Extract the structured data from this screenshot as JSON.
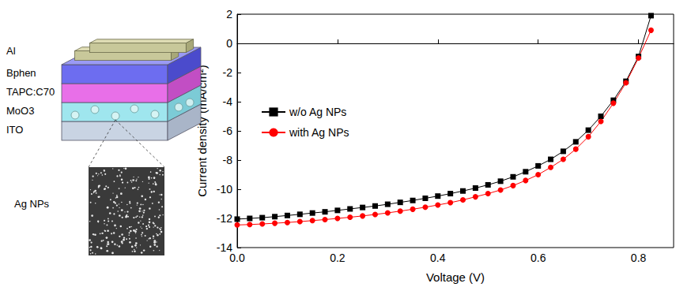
{
  "chart_data": {
    "type": "line",
    "x_label": "Voltage (V)",
    "y_label": "Current density (mA/cm²)",
    "x": [
      0,
      0.025,
      0.05,
      0.075,
      0.1,
      0.125,
      0.15,
      0.175,
      0.2,
      0.225,
      0.25,
      0.275,
      0.3,
      0.325,
      0.35,
      0.375,
      0.4,
      0.425,
      0.45,
      0.475,
      0.5,
      0.525,
      0.55,
      0.575,
      0.6,
      0.625,
      0.65,
      0.675,
      0.7,
      0.725,
      0.75,
      0.775,
      0.8,
      0.825
    ],
    "series": [
      {
        "name": "w/o Ag NPs",
        "color": "#000000",
        "marker": "square",
        "line_style": "solid",
        "values": [
          -12.05,
          -12.0,
          -11.95,
          -11.88,
          -11.8,
          -11.72,
          -11.63,
          -11.55,
          -11.45,
          -11.35,
          -11.25,
          -11.15,
          -11.03,
          -10.9,
          -10.77,
          -10.62,
          -10.47,
          -10.3,
          -10.12,
          -9.92,
          -9.7,
          -9.45,
          -9.15,
          -8.8,
          -8.4,
          -7.95,
          -7.4,
          -6.75,
          -5.95,
          -5.0,
          -3.9,
          -2.6,
          -0.9,
          1.9
        ]
      },
      {
        "name": "with Ag NPs",
        "color": "#ff0000",
        "marker": "circle",
        "line_style": "solid",
        "values": [
          -12.45,
          -12.42,
          -12.38,
          -12.33,
          -12.28,
          -12.22,
          -12.15,
          -12.08,
          -12.0,
          -11.92,
          -11.83,
          -11.73,
          -11.62,
          -11.5,
          -11.37,
          -11.23,
          -11.08,
          -10.92,
          -10.73,
          -10.52,
          -10.3,
          -10.05,
          -9.75,
          -9.4,
          -9.0,
          -8.5,
          -7.95,
          -7.25,
          -6.4,
          -5.35,
          -4.1,
          -2.7,
          -1.0,
          0.9
        ]
      }
    ],
    "xlim": [
      0,
      0.87
    ],
    "xticks": [
      {
        "value": 0,
        "label": "0.0"
      },
      0.2,
      0.4,
      0.6,
      0.8
    ],
    "ylim": [
      -14,
      2
    ],
    "yticks": [
      -14,
      -12,
      -10,
      -8,
      -6,
      -4,
      -2,
      0,
      2
    ],
    "grid": false,
    "legend": "left"
  },
  "diagram": {
    "layers": [
      "Al",
      "Bphen",
      "TAPC:C70",
      "MoO3",
      "ITO"
    ],
    "inset_label": "Ag NPs"
  }
}
